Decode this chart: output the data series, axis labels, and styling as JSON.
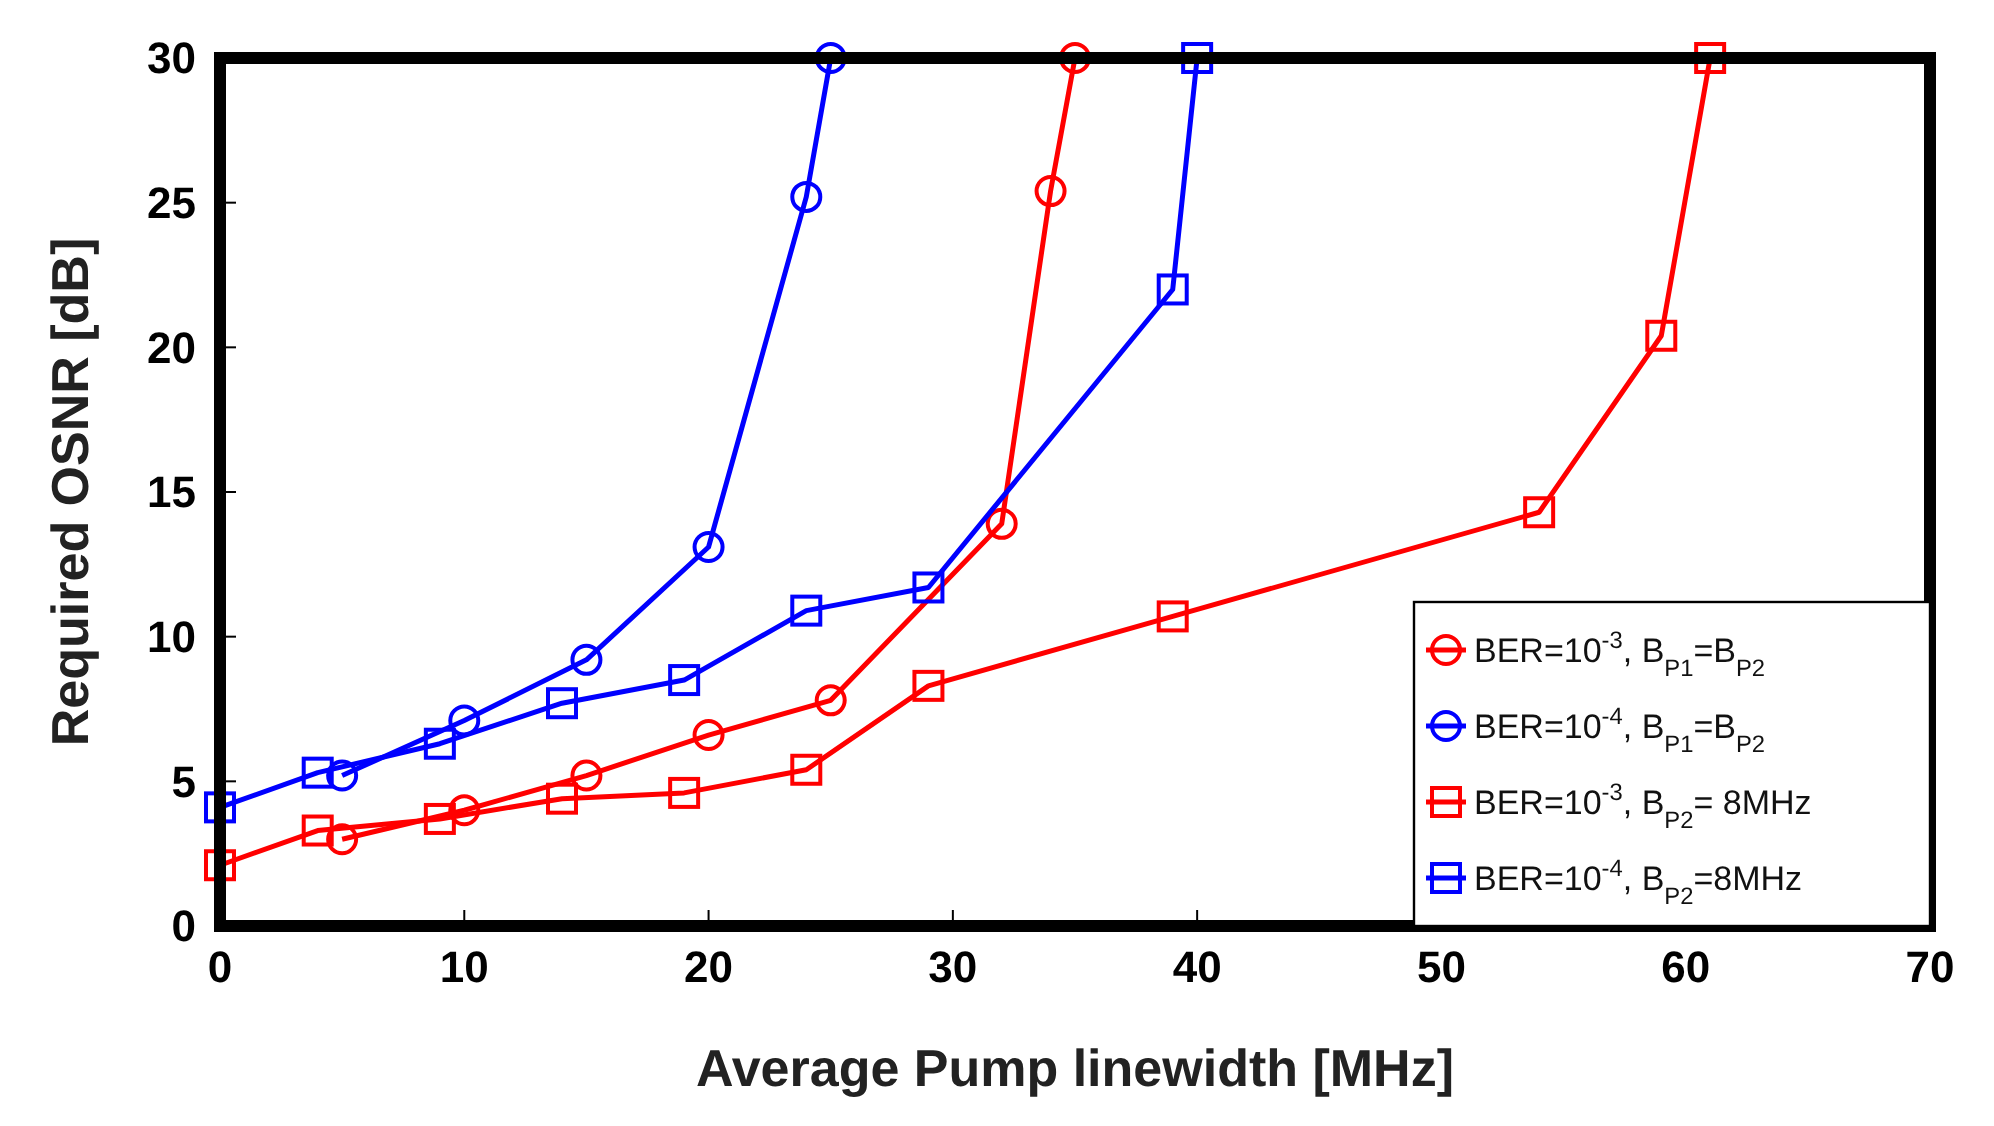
{
  "chart_data": {
    "type": "line",
    "xlabel": "Average Pump linewidth [MHz]",
    "ylabel": "Required OSNR [dB]",
    "xlim": [
      0,
      70
    ],
    "xticks": [
      0,
      10,
      20,
      30,
      40,
      50,
      60,
      70
    ],
    "ylim": [
      0,
      30
    ],
    "yticks": [
      0,
      5,
      10,
      15,
      20,
      25,
      30
    ],
    "grid": false,
    "legend": "bottom right",
    "line_style": "solid",
    "series": [
      {
        "name": "BER=10$^{-3}$, B$_{P1}$=B$_{P2}$",
        "color": "#ff0000",
        "marker": "circle",
        "x": [
          5,
          10,
          15,
          20,
          25,
          32,
          34,
          35
        ],
        "values": [
          3.0,
          4.0,
          5.2,
          6.6,
          7.8,
          13.9,
          25.4,
          30
        ]
      },
      {
        "name": "BER=10$^{-4}$, B$_{P1}$=B$_{P2}$",
        "color": "#0000ff",
        "marker": "circle",
        "x": [
          5,
          10,
          15,
          20,
          24,
          25
        ],
        "values": [
          5.2,
          7.1,
          9.2,
          13.1,
          25.2,
          30
        ]
      },
      {
        "name": "BER=10$^{-3}$, B$_{P2}$= 8MHz",
        "color": "#ff0000",
        "marker": "square",
        "x": [
          0,
          4,
          9,
          14,
          19,
          24,
          29,
          39,
          54,
          59,
          61
        ],
        "values": [
          2.1,
          3.3,
          3.7,
          4.4,
          4.6,
          5.4,
          8.3,
          10.7,
          14.3,
          20.4,
          30
        ]
      },
      {
        "name": "BER=10$^{-4}$, B$_{P2}$=8MHz",
        "color": "#0000ff",
        "marker": "square",
        "x": [
          0,
          4,
          9,
          14,
          19,
          24,
          29,
          39,
          40
        ],
        "values": [
          4.1,
          5.3,
          6.3,
          7.7,
          8.5,
          10.9,
          11.7,
          22.0,
          30
        ]
      }
    ]
  }
}
